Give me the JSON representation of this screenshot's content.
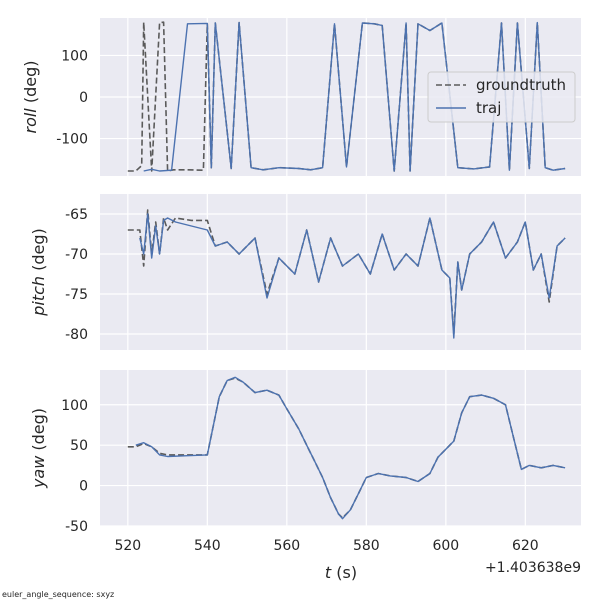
{
  "chart_data": [
    {
      "type": "line",
      "ylabel_name": "roll",
      "ylabel_unit": " (deg)",
      "xlim": [
        513,
        634
      ],
      "ylim": [
        -190,
        190
      ],
      "yticks": [
        100,
        0,
        -100
      ],
      "grid": true,
      "legend": {
        "placement": "right",
        "entries": [
          "groundtruth",
          "traj"
        ]
      },
      "series": [
        {
          "name": "groundtruth",
          "style": "dashed",
          "color": "#5a5a5a",
          "x": [
            520,
            522,
            523.5,
            524,
            526,
            528,
            529,
            530,
            531.5,
            535,
            539,
            540,
            541,
            542,
            546,
            548,
            551,
            554,
            558,
            563,
            566,
            569,
            572,
            575,
            579,
            582,
            584,
            587,
            590,
            591,
            593,
            596,
            599,
            603,
            607,
            611,
            614,
            616,
            618,
            621,
            623,
            625,
            627,
            630
          ],
          "y": [
            -178,
            -178,
            -165,
            180,
            -178,
            179,
            180,
            -178,
            -175,
            -175,
            -176,
            176,
            -170,
            178,
            -172,
            179,
            -170,
            -175,
            -170,
            -172,
            -175,
            -170,
            176,
            -168,
            178,
            176,
            172,
            -178,
            178,
            -178,
            176,
            160,
            178,
            -170,
            -173,
            -168,
            178,
            -176,
            178,
            -172,
            179,
            -170,
            -176,
            -172
          ]
        },
        {
          "name": "traj",
          "style": "solid",
          "color": "#4c72b0",
          "x": [
            524,
            526,
            528,
            531,
            535,
            540,
            541,
            542,
            546,
            548,
            551,
            554,
            558,
            563,
            566,
            569,
            572,
            575,
            579,
            582,
            584,
            587,
            590,
            591,
            593,
            596,
            599,
            603,
            607,
            611,
            614,
            616,
            618,
            621,
            623,
            625,
            627,
            630
          ],
          "y": [
            -178,
            -174,
            -178,
            -176,
            176,
            177,
            -170,
            178,
            -172,
            179,
            -170,
            -175,
            -170,
            -172,
            -175,
            -170,
            176,
            -168,
            178,
            176,
            172,
            -178,
            178,
            -178,
            176,
            160,
            178,
            -170,
            -173,
            -168,
            178,
            -176,
            178,
            -172,
            179,
            -170,
            -176,
            -172
          ]
        }
      ]
    },
    {
      "type": "line",
      "ylabel_name": "pitch",
      "ylabel_unit": " (deg)",
      "xlim": [
        513,
        634
      ],
      "ylim": [
        -82,
        -62.5
      ],
      "yticks": [
        -65,
        -70,
        -75,
        -80
      ],
      "grid": true,
      "series": [
        {
          "name": "groundtruth",
          "style": "dashed",
          "color": "#5a5a5a",
          "x": [
            520,
            523,
            524,
            525,
            526,
            527,
            528,
            529,
            530,
            532,
            536,
            540,
            542,
            545,
            548,
            552,
            555,
            558,
            562,
            565,
            568,
            571,
            574,
            578,
            581,
            584,
            587,
            590,
            593,
            596,
            599,
            601,
            602,
            603,
            604,
            606,
            609,
            612,
            615,
            618,
            620,
            622,
            624,
            626,
            628,
            630
          ],
          "y": [
            -67,
            -67,
            -71.5,
            -64.5,
            -70,
            -66,
            -70,
            -65.5,
            -67,
            -65.5,
            -65.8,
            -65.8,
            -69,
            -68.5,
            -70,
            -68,
            -75,
            -70.5,
            -72.5,
            -67,
            -73.5,
            -68,
            -71.5,
            -70,
            -72.5,
            -67.5,
            -72,
            -70,
            -71.5,
            -65.5,
            -72,
            -73,
            -80,
            -71,
            -74.5,
            -70,
            -68.5,
            -66,
            -70.5,
            -68.5,
            -66,
            -72,
            -70,
            -76,
            -69,
            -68
          ]
        },
        {
          "name": "traj",
          "style": "solid",
          "color": "#4c72b0",
          "x": [
            523,
            524,
            525,
            526,
            527,
            528,
            529,
            530,
            532,
            536,
            540,
            542,
            545,
            548,
            552,
            555,
            558,
            562,
            565,
            568,
            571,
            574,
            578,
            581,
            584,
            587,
            590,
            593,
            596,
            599,
            601,
            602,
            603,
            604,
            606,
            609,
            612,
            615,
            618,
            620,
            622,
            624,
            626,
            628,
            630
          ],
          "y": [
            -68,
            -70,
            -65,
            -70.5,
            -66.5,
            -70,
            -65.8,
            -65.5,
            -66,
            -66.5,
            -67,
            -69,
            -68.5,
            -70,
            -68,
            -75.5,
            -70.5,
            -72.5,
            -67,
            -73.5,
            -68,
            -71.5,
            -70,
            -72.5,
            -67.5,
            -72,
            -70,
            -71.5,
            -65.5,
            -72,
            -73,
            -80.5,
            -71,
            -74.5,
            -70,
            -68.5,
            -66,
            -70.5,
            -68.5,
            -66,
            -72,
            -70,
            -75.5,
            -69,
            -68
          ]
        }
      ]
    },
    {
      "type": "line",
      "ylabel_name": "yaw",
      "ylabel_unit": " (deg)",
      "xlim": [
        513,
        634
      ],
      "ylim": [
        -50,
        143
      ],
      "yticks": [
        100,
        50,
        0,
        -50
      ],
      "grid": true,
      "xticks": [
        520,
        540,
        560,
        580,
        600,
        620
      ],
      "xlabel_name": "t",
      "xlabel_unit": " (s)",
      "x_offset_text": "+1.403638e9",
      "series": [
        {
          "name": "groundtruth",
          "style": "dashed",
          "color": "#5a5a5a",
          "x": [
            520,
            522,
            524,
            526,
            528,
            530,
            535,
            540,
            543,
            545,
            547,
            549,
            552,
            555,
            558,
            560,
            563,
            565,
            567,
            569,
            571,
            573,
            574,
            576,
            578,
            580,
            583,
            586,
            590,
            593,
            596,
            598,
            600,
            602,
            604,
            606,
            609,
            612,
            615,
            617,
            619,
            621,
            624,
            627,
            630
          ],
          "y": [
            48,
            48,
            52,
            48,
            40,
            38,
            38,
            38,
            110,
            130,
            133,
            128,
            115,
            118,
            112,
            95,
            70,
            50,
            30,
            10,
            -15,
            -35,
            -40,
            -30,
            -10,
            10,
            15,
            12,
            10,
            5,
            15,
            35,
            45,
            55,
            90,
            110,
            112,
            108,
            100,
            60,
            20,
            25,
            22,
            25,
            22
          ]
        },
        {
          "name": "traj",
          "style": "solid",
          "color": "#4c72b0",
          "x": [
            522,
            524,
            526,
            528,
            530,
            535,
            540,
            543,
            545,
            547,
            549,
            552,
            555,
            558,
            560,
            563,
            565,
            567,
            569,
            571,
            573,
            574,
            576,
            578,
            580,
            583,
            586,
            590,
            593,
            596,
            598,
            600,
            602,
            604,
            606,
            609,
            612,
            615,
            617,
            619,
            621,
            624,
            627,
            630
          ],
          "y": [
            50,
            53,
            48,
            38,
            36,
            37,
            38,
            110,
            130,
            134,
            128,
            115,
            118,
            112,
            95,
            70,
            50,
            30,
            10,
            -15,
            -35,
            -41,
            -30,
            -10,
            10,
            15,
            12,
            10,
            5,
            15,
            35,
            45,
            55,
            90,
            110,
            112,
            108,
            100,
            60,
            20,
            25,
            22,
            25,
            22
          ]
        }
      ]
    }
  ],
  "footnote": "euler_angle_sequence: sxyz"
}
